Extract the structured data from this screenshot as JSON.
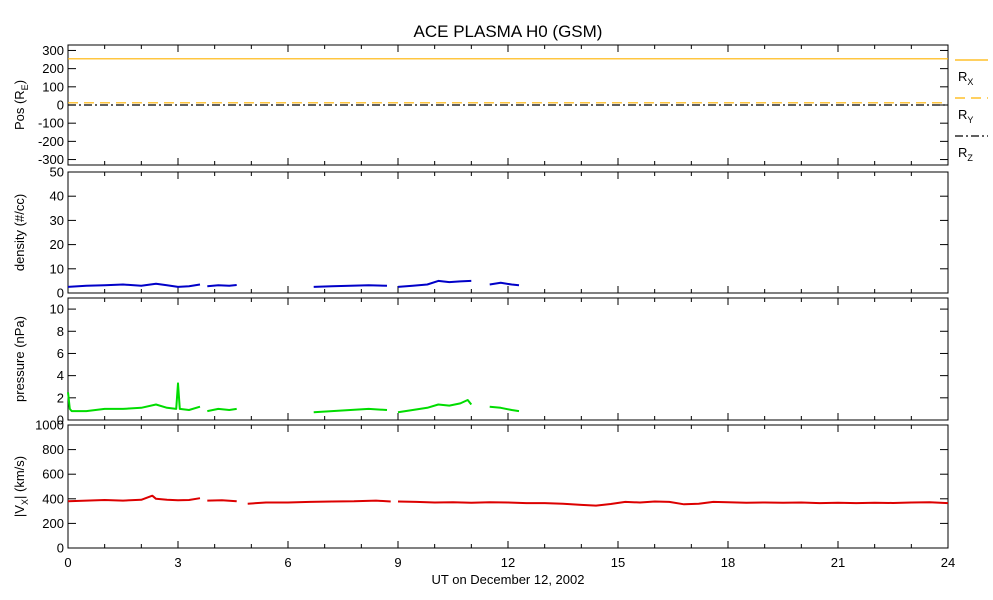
{
  "title": "ACE PLASMA H0 (GSM)",
  "xlabel": "UT on December 12, 2002",
  "x_ticks": [
    "0",
    "3",
    "6",
    "9",
    "12",
    "15",
    "18",
    "21",
    "24"
  ],
  "colors": {
    "rx": "#ffb400",
    "ry": "#ffb400",
    "rz": "#000000",
    "density": "#0000c8",
    "pressure": "#00dc00",
    "vx": "#dc0000",
    "axis": "#000000"
  },
  "chart_data": [
    {
      "type": "line",
      "id": "pos",
      "ylabel": "Pos (R",
      "ylabel_sub": "E",
      "ylabel_end": ")",
      "ylim": [
        -330,
        330
      ],
      "y_ticks": [
        300,
        200,
        100,
        0,
        -100,
        -200,
        -300
      ],
      "series": [
        {
          "name": "R",
          "sub": "X",
          "style": "solid",
          "x": [
            0,
            24
          ],
          "values": [
            254,
            254
          ]
        },
        {
          "name": "R",
          "sub": "Y",
          "style": "dashed",
          "x": [
            0,
            24
          ],
          "values": [
            12,
            12
          ]
        },
        {
          "name": "R",
          "sub": "Z",
          "style": "dashdot",
          "x": [
            0,
            24
          ],
          "values": [
            0,
            0
          ]
        }
      ]
    },
    {
      "type": "line",
      "id": "density",
      "ylabel": "density (#/cc)",
      "ylim": [
        0,
        50
      ],
      "y_ticks": [
        50,
        40,
        30,
        20,
        10,
        0
      ],
      "segments": [
        {
          "x": [
            0,
            0.5,
            1.0,
            1.5,
            2.0,
            2.4,
            2.7,
            3.0,
            3.3,
            3.6
          ],
          "values": [
            2.5,
            3.0,
            3.2,
            3.5,
            3.0,
            3.8,
            3.2,
            2.5,
            2.8,
            3.5
          ]
        },
        {
          "x": [
            3.8,
            4.1,
            4.4,
            4.6
          ],
          "values": [
            2.8,
            3.2,
            3.0,
            3.3
          ]
        },
        {
          "x": [
            6.7,
            7.2,
            7.7,
            8.2,
            8.7
          ],
          "values": [
            2.5,
            2.8,
            3.0,
            3.2,
            3.0
          ]
        },
        {
          "x": [
            9.0,
            9.4,
            9.8,
            10.1,
            10.4,
            10.7,
            11.0
          ],
          "values": [
            2.5,
            3.0,
            3.5,
            5.0,
            4.5,
            4.8,
            5.0
          ]
        },
        {
          "x": [
            11.5,
            11.8,
            12.1,
            12.3
          ],
          "values": [
            3.5,
            4.2,
            3.5,
            3.2
          ]
        }
      ]
    },
    {
      "type": "line",
      "id": "pressure",
      "ylabel": "pressure (nPa)",
      "ylim": [
        0,
        11
      ],
      "y_ticks": [
        10,
        8,
        6,
        4,
        2,
        0
      ],
      "segments": [
        {
          "x": [
            0,
            0.05,
            0.1,
            0.5,
            1.0,
            1.5,
            2.0,
            2.4,
            2.7,
            2.95,
            3.0,
            3.05,
            3.3,
            3.6
          ],
          "values": [
            2.5,
            1.0,
            0.8,
            0.8,
            1.0,
            1.0,
            1.1,
            1.4,
            1.1,
            1.0,
            3.3,
            1.0,
            0.9,
            1.2
          ]
        },
        {
          "x": [
            3.8,
            4.1,
            4.4,
            4.6
          ],
          "values": [
            0.8,
            1.0,
            0.9,
            1.0
          ]
        },
        {
          "x": [
            6.7,
            7.2,
            7.7,
            8.2,
            8.7
          ],
          "values": [
            0.7,
            0.8,
            0.9,
            1.0,
            0.9
          ]
        },
        {
          "x": [
            9.0,
            9.4,
            9.8,
            10.1,
            10.4,
            10.7,
            10.9,
            11.0
          ],
          "values": [
            0.7,
            0.9,
            1.1,
            1.4,
            1.3,
            1.5,
            1.8,
            1.4
          ]
        },
        {
          "x": [
            11.5,
            11.8,
            12.1,
            12.3
          ],
          "values": [
            1.2,
            1.1,
            0.9,
            0.8
          ]
        }
      ]
    },
    {
      "type": "line",
      "id": "vx",
      "ylabel": "|V",
      "ylabel_sub": "X",
      "ylabel_end": "| (km/s)",
      "ylim": [
        0,
        1000
      ],
      "y_ticks": [
        1000,
        800,
        600,
        400,
        200,
        0
      ],
      "segments": [
        {
          "x": [
            0,
            0.5,
            1.0,
            1.5,
            2.0,
            2.3,
            2.4,
            2.7,
            3.0,
            3.3,
            3.6
          ],
          "values": [
            380,
            385,
            390,
            385,
            392,
            425,
            400,
            392,
            388,
            390,
            405
          ]
        },
        {
          "x": [
            3.8,
            4.2,
            4.6
          ],
          "values": [
            385,
            388,
            380
          ]
        },
        {
          "x": [
            4.9,
            5.4,
            6.0,
            6.6,
            7.2,
            7.8,
            8.4,
            8.8
          ],
          "values": [
            360,
            370,
            370,
            375,
            378,
            380,
            385,
            378
          ]
        },
        {
          "x": [
            9.0,
            9.5,
            10.0,
            10.5,
            11.0,
            11.5,
            12.0,
            12.5,
            13.0,
            13.5,
            14.0,
            14.4,
            14.8,
            15.2,
            15.6,
            16.0,
            16.4,
            16.8,
            17.2,
            17.6,
            18.0,
            18.5,
            19.0,
            19.5,
            20.0,
            20.5,
            21.0,
            21.5,
            22.0,
            22.5,
            23.0,
            23.5,
            24.0
          ],
          "values": [
            378,
            375,
            370,
            372,
            368,
            372,
            370,
            365,
            365,
            360,
            350,
            345,
            358,
            375,
            370,
            378,
            375,
            355,
            360,
            375,
            372,
            368,
            370,
            368,
            370,
            365,
            368,
            365,
            368,
            366,
            370,
            372,
            365
          ]
        }
      ]
    }
  ]
}
